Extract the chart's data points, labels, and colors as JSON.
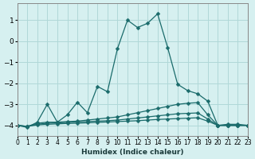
{
  "title": "",
  "xlabel": "Humidex (Indice chaleur)",
  "ylabel": "",
  "background_color": "#d6f0f0",
  "line_color": "#1a6b6b",
  "grid_color": "#b0d8d8",
  "xlim": [
    0,
    23
  ],
  "ylim": [
    -4.5,
    1.8
  ],
  "yticks": [
    -4,
    -3,
    -2,
    -1,
    0,
    1
  ],
  "xticks": [
    0,
    1,
    2,
    3,
    4,
    5,
    6,
    7,
    8,
    9,
    10,
    11,
    12,
    13,
    14,
    15,
    16,
    17,
    18,
    19,
    20,
    21,
    22,
    23
  ],
  "series": [
    {
      "x": [
        0,
        1,
        2,
        3,
        4,
        5,
        6,
        7,
        8,
        9,
        10,
        11,
        12,
        13,
        14,
        15,
        16,
        17,
        18,
        19,
        20,
        21,
        22,
        23
      ],
      "y": [
        -4.0,
        -4.1,
        -3.85,
        -3.0,
        -3.85,
        -3.5,
        -2.9,
        -3.4,
        -2.15,
        -2.4,
        -0.35,
        1.0,
        0.65,
        0.85,
        1.3,
        -0.3,
        -2.05,
        -2.35,
        -2.5,
        -2.85,
        -4.0,
        -3.95,
        -3.95,
        -4.0
      ]
    },
    {
      "x": [
        0,
        1,
        2,
        3,
        4,
        5,
        6,
        7,
        8,
        9,
        10,
        11,
        12,
        13,
        14,
        15,
        16,
        17,
        18,
        19,
        20,
        21,
        22,
        23
      ],
      "y": [
        -4.0,
        -4.05,
        -3.9,
        -3.85,
        -3.85,
        -3.82,
        -3.8,
        -3.75,
        -3.7,
        -3.65,
        -3.6,
        -3.5,
        -3.4,
        -3.3,
        -3.2,
        -3.1,
        -3.0,
        -2.95,
        -2.92,
        -3.5,
        -4.0,
        -4.0,
        -4.0,
        -4.0
      ]
    },
    {
      "x": [
        0,
        1,
        2,
        3,
        4,
        5,
        6,
        7,
        8,
        9,
        10,
        11,
        12,
        13,
        14,
        15,
        16,
        17,
        18,
        19,
        20,
        21,
        22,
        23
      ],
      "y": [
        -4.0,
        -4.05,
        -3.95,
        -3.9,
        -3.88,
        -3.86,
        -3.84,
        -3.82,
        -3.8,
        -3.78,
        -3.75,
        -3.7,
        -3.65,
        -3.6,
        -3.55,
        -3.5,
        -3.45,
        -3.43,
        -3.41,
        -3.7,
        -4.0,
        -4.0,
        -4.0,
        -4.0
      ]
    },
    {
      "x": [
        0,
        1,
        2,
        3,
        4,
        5,
        6,
        7,
        8,
        9,
        10,
        11,
        12,
        13,
        14,
        15,
        16,
        17,
        18,
        19,
        20,
        21,
        22,
        23
      ],
      "y": [
        -4.0,
        -4.05,
        -3.98,
        -3.95,
        -3.93,
        -3.91,
        -3.9,
        -3.88,
        -3.86,
        -3.84,
        -3.82,
        -3.8,
        -3.78,
        -3.75,
        -3.72,
        -3.7,
        -3.68,
        -3.66,
        -3.64,
        -3.8,
        -4.0,
        -4.0,
        -4.0,
        -4.0
      ]
    }
  ]
}
